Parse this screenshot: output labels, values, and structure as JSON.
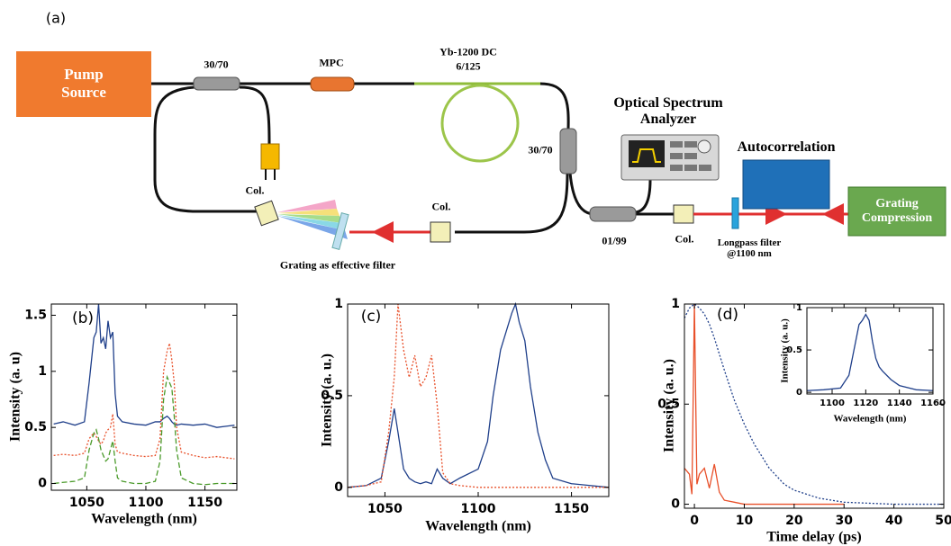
{
  "diagram": {
    "panel_label": "(a)",
    "pump_source": "Pump Source",
    "coupler_1": "30/70",
    "mpc": "MPC",
    "fiber": "Yb-1200 DC",
    "fiber_core": "6/125",
    "osa": "Optical Spectrum Analyzer",
    "autocorrelation": "Autocorrelation",
    "coupler_2": "30/70",
    "collimator_1": "Col.",
    "collimator_2": "Col.",
    "collimator_3": "Col.",
    "grating_filter": "Grating as effective filter",
    "coupler_3": "01/99",
    "longpass": "Longpass filter @1100 nm",
    "grating_compression": "Grating Compression"
  },
  "chart_data": [
    {
      "type": "line",
      "panel_label": "(b)",
      "x_label": "Wavelength (nm)",
      "y_label": "Intensity (a. u)",
      "x": [
        1022,
        1030,
        1040,
        1048,
        1052,
        1056,
        1058,
        1060,
        1062,
        1064,
        1066,
        1068,
        1070,
        1072,
        1074,
        1076,
        1080,
        1090,
        1100,
        1108,
        1112,
        1115,
        1118,
        1120,
        1122,
        1124,
        1126,
        1130,
        1140,
        1150,
        1160,
        1175
      ],
      "series": [
        {
          "color": "#1f3f8a",
          "style": "solid",
          "values": [
            0.53,
            0.55,
            0.52,
            0.55,
            0.9,
            1.3,
            1.35,
            1.6,
            1.25,
            1.3,
            1.2,
            1.45,
            1.3,
            1.35,
            0.8,
            0.6,
            0.55,
            0.53,
            0.52,
            0.55,
            0.55,
            0.58,
            0.6,
            0.58,
            0.55,
            0.53,
            0.52,
            0.53,
            0.52,
            0.53,
            0.5,
            0.52
          ]
        },
        {
          "color": "#e8502a",
          "style": "dotted",
          "values": [
            0.25,
            0.26,
            0.25,
            0.27,
            0.4,
            0.45,
            0.42,
            0.38,
            0.35,
            0.38,
            0.45,
            0.48,
            0.5,
            0.62,
            0.35,
            0.28,
            0.27,
            0.25,
            0.24,
            0.25,
            0.4,
            1.0,
            1.18,
            1.25,
            1.1,
            0.9,
            0.5,
            0.28,
            0.25,
            0.23,
            0.24,
            0.22
          ]
        },
        {
          "color": "#4a9a2a",
          "style": "dashed",
          "values": [
            0,
            0.01,
            0.02,
            0.05,
            0.3,
            0.45,
            0.48,
            0.4,
            0.3,
            0.25,
            0.2,
            0.22,
            0.3,
            0.38,
            0.2,
            0.05,
            0.02,
            0,
            0,
            0.02,
            0.2,
            0.75,
            0.95,
            0.9,
            0.85,
            0.6,
            0.3,
            0.05,
            0,
            -0.01,
            0,
            0
          ]
        }
      ],
      "xlim": [
        1020,
        1177
      ],
      "ylim": [
        -0.06,
        1.6
      ],
      "xticks": [
        1050,
        1100,
        1150
      ],
      "yticks": [
        0,
        0.5,
        1,
        1.5
      ]
    },
    {
      "type": "line",
      "panel_label": "(c)",
      "x_label": "Wavelength (nm)",
      "y_label": "Intensity (a. u.)",
      "x": [
        1030,
        1040,
        1048,
        1052,
        1055,
        1057,
        1060,
        1063,
        1066,
        1069,
        1072,
        1075,
        1078,
        1081,
        1085,
        1090,
        1100,
        1105,
        1108,
        1112,
        1115,
        1118,
        1120,
        1122,
        1125,
        1128,
        1132,
        1136,
        1140,
        1150,
        1160,
        1170
      ],
      "series": [
        {
          "color": "#1f3f8a",
          "style": "solid",
          "values": [
            0,
            0.01,
            0.05,
            0.25,
            0.43,
            0.3,
            0.1,
            0.05,
            0.03,
            0.02,
            0.03,
            0.02,
            0.1,
            0.05,
            0.02,
            0.05,
            0.1,
            0.25,
            0.5,
            0.75,
            0.85,
            0.95,
            1.0,
            0.9,
            0.8,
            0.55,
            0.3,
            0.15,
            0.05,
            0.02,
            0.01,
            0
          ]
        },
        {
          "color": "#e8502a",
          "style": "dotted",
          "values": [
            0,
            0.01,
            0.03,
            0.3,
            0.6,
            1.0,
            0.75,
            0.6,
            0.72,
            0.55,
            0.6,
            0.72,
            0.45,
            0.08,
            0.02,
            0.01,
            0,
            0,
            0,
            0,
            0,
            0,
            0,
            0,
            0,
            0,
            0,
            0,
            0,
            0,
            0,
            0
          ]
        }
      ],
      "xlim": [
        1030,
        1170
      ],
      "ylim": [
        -0.05,
        1
      ],
      "xticks": [
        1050,
        1100,
        1150
      ],
      "yticks": [
        0,
        0.5,
        1
      ]
    },
    {
      "type": "line",
      "panel_label": "(d)",
      "x_label": "Time delay (ps)",
      "y_label": "Intensity (a. u.)",
      "x": [
        -2,
        -1,
        -0.5,
        0,
        0.5,
        1,
        2,
        3,
        4,
        5,
        6,
        8,
        10,
        12,
        15,
        18,
        20,
        25,
        30,
        35,
        40,
        45,
        50
      ],
      "series": [
        {
          "color": "#1f3f8a",
          "style": "dotted",
          "values": [
            0.93,
            0.98,
            0.99,
            1.0,
            0.99,
            0.98,
            0.95,
            0.9,
            0.83,
            0.75,
            0.67,
            0.52,
            0.4,
            0.3,
            0.18,
            0.1,
            0.07,
            0.03,
            0.01,
            0.005,
            0,
            0,
            0
          ]
        },
        {
          "color": "#e8502a",
          "style": "solid",
          "values": [
            0.18,
            0.15,
            0.05,
            1.0,
            0.1,
            0.15,
            0.18,
            0.08,
            0.2,
            0.06,
            0.02,
            0.01,
            0,
            0,
            0,
            0,
            0,
            0,
            0,
            null,
            null,
            null,
            null
          ]
        }
      ],
      "xlim": [
        -2,
        50
      ],
      "ylim": [
        -0.02,
        1
      ],
      "xticks": [
        0,
        10,
        20,
        30,
        40,
        50
      ],
      "yticks": [
        0,
        0.5,
        1
      ]
    },
    {
      "type": "line",
      "x_label": "Wavelength (nm)",
      "y_label": "Intensity (a. u.)",
      "x": [
        1085,
        1095,
        1105,
        1110,
        1113,
        1116,
        1118,
        1120,
        1122,
        1124,
        1126,
        1128,
        1130,
        1135,
        1140,
        1150,
        1160
      ],
      "series": [
        {
          "color": "#1f3f8a",
          "style": "solid",
          "values": [
            0.02,
            0.03,
            0.05,
            0.2,
            0.5,
            0.8,
            0.85,
            0.92,
            0.85,
            0.6,
            0.4,
            0.3,
            0.25,
            0.15,
            0.08,
            0.03,
            0.02
          ]
        }
      ],
      "xlim": [
        1085,
        1160
      ],
      "ylim": [
        -0.02,
        1
      ],
      "xticks": [
        1100,
        1120,
        1140,
        1160
      ],
      "yticks": [
        0,
        0.5,
        1
      ]
    }
  ]
}
